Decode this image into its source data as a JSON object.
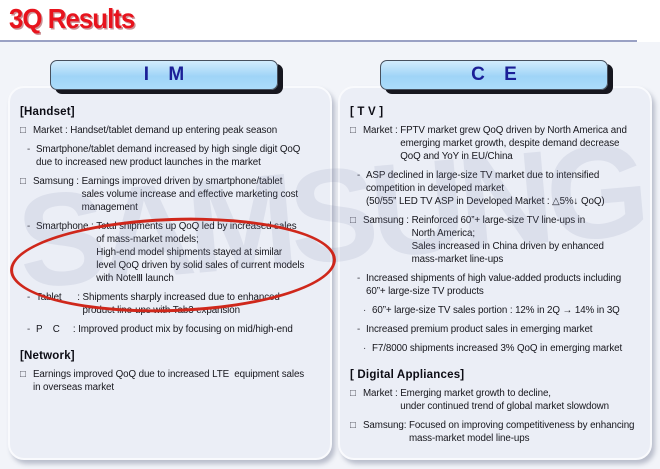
{
  "slide": {
    "title": "3Q Results",
    "watermark": "SAMSUNG"
  },
  "colors": {
    "title_red": "#e8131d",
    "rule_line": "#9aa1c4",
    "header_fill": "#a5d7f8",
    "header_text": "#1b1f97",
    "panel_bg": "#ebeef6",
    "body_text": "#16161c",
    "highlight_circle": "#cf271b"
  },
  "panels": [
    {
      "header": "I M",
      "sections": [
        {
          "heading": "[Handset]",
          "bullets": [
            {
              "marker": "□",
              "label": "Market : ",
              "text": "Handset/tablet demand up entering peak season"
            },
            {
              "marker": "-",
              "label": "",
              "text": "Smartphone/tablet demand increased by high single digit QoQ\ndue to increased new product launches in the market"
            },
            {
              "marker": "□",
              "label": "Samsung : ",
              "text": "Earnings improved driven by smartphone/tablet\nsales volume increase and effective marketing cost\nmanagement"
            },
            {
              "marker": "-",
              "label": "Smartphone : ",
              "text": "Total shipments up QoQ led by increased sales\nof mass-market models;\nHigh-end model shipments stayed at similar\nlevel QoQ driven by solid sales of current models\nwith NoteⅢ launch"
            },
            {
              "marker": "-",
              "label": "Tablet      : ",
              "text": "Shipments sharply increased due to enhanced\nproduct line-ups with Tab3 expansion"
            },
            {
              "marker": "-",
              "label": "P    C     : ",
              "text": "Improved product mix by focusing on mid/high-end"
            }
          ]
        },
        {
          "heading": "[Network]",
          "bullets": [
            {
              "marker": "□",
              "label": "",
              "text": "Earnings improved QoQ due to increased LTE  equipment sales\nin overseas market"
            }
          ]
        }
      ]
    },
    {
      "header": "C E",
      "sections": [
        {
          "heading": "[ T V ]",
          "bullets": [
            {
              "marker": "□",
              "label": "Market : ",
              "text": "FPTV market grew QoQ driven by North America and\nemerging market growth, despite demand decrease\nQoQ and YoY in EU/China"
            },
            {
              "marker": "-",
              "label": "",
              "text": "ASP declined in large-size TV market due to intensified\ncompetition in developed market\n(50/55” LED TV ASP in Developed Market : △5%↓ QoQ)"
            },
            {
              "marker": "□",
              "label": "Samsung : ",
              "text": "Reinforced 60”+ large-size TV line-ups in\nNorth America;\nSales increased in China driven by enhanced\nmass-market line-ups"
            },
            {
              "marker": "-",
              "label": "",
              "text": "Increased shipments of high value-added products including\n60”+ large-size TV products"
            },
            {
              "marker": "·",
              "label": "",
              "text": "60”+ large-size TV sales portion : 12% in 2Q → 14% in 3Q"
            },
            {
              "marker": "-",
              "label": "",
              "text": "Increased premium product sales in emerging market"
            },
            {
              "marker": "·",
              "label": "",
              "text": "F7/8000 shipments increased 3% QoQ in emerging market"
            }
          ]
        },
        {
          "heading": "[ Digital Appliances]",
          "bullets": [
            {
              "marker": "□",
              "label": "Market : ",
              "text": "Emerging market growth to decline,\nunder continued trend of global market slowdown"
            },
            {
              "marker": "□",
              "label": "Samsung: ",
              "text": "Focused on improving competitiveness by enhancing\nmass-market model line-ups"
            }
          ]
        }
      ]
    }
  ]
}
